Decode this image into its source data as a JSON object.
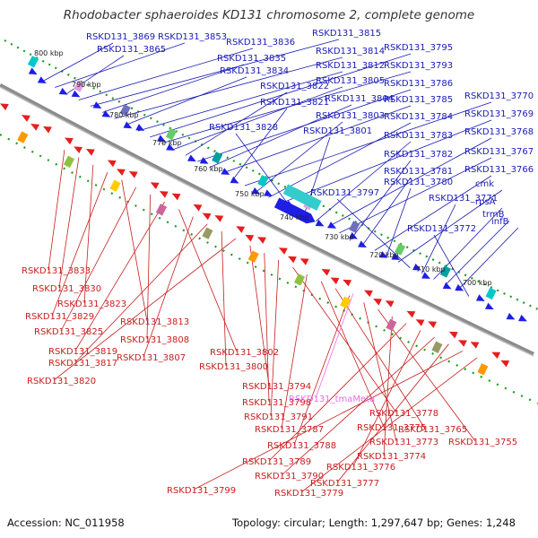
{
  "title": "Rhodobacter sphaeroides KD131 chromosome 2, complete genome",
  "footer": {
    "accession": "Accession: NC_011958",
    "summary": "Topology: circular; Length: 1,297,647 bp; Genes: 1,248"
  },
  "colors": {
    "forward_gene": "#1e1ee6",
    "reverse_gene": "#e61e1e",
    "backbone": "#8c8c8c",
    "tick": "#1e9b1e",
    "label_forward": "#1a1ab4",
    "label_reverse": "#c81e1e",
    "label_rna": "#e96ee9"
  },
  "scale_labels": [
    "800 kbp",
    "790 kbp",
    "780 kbp",
    "770 kbp",
    "760 kbp",
    "750 kbp",
    "740 kbp",
    "730 kbp",
    "720 kbp",
    "710 kbp",
    "700 kbp"
  ],
  "forward_labels": [
    "RSKD131_3869",
    "RSKD131_3853",
    "RSKD131_3865",
    "RSKD131_3836",
    "RSKD131_3815",
    "RSKD131_3835",
    "RSKD131_3814",
    "RSKD131_3834",
    "RSKD131_3812",
    "RSKD131_3795",
    "RSKD131_3793",
    "RSKD131_3805",
    "RSKD131_3822",
    "RSKD131_3786",
    "RSKD131_3804",
    "RSKD131_3785",
    "RSKD131_3821",
    "RSKD131_3770",
    "RSKD131_3803",
    "RSKD131_3784",
    "RSKD131_3769",
    "RSKD131_3828",
    "RSKD131_3801",
    "RSKD131_3783",
    "RSKD131_3768",
    "RSKD131_3767",
    "RSKD131_3782",
    "RSKD131_3781",
    "RSKD131_3766",
    "RSKD131_3780",
    "cmk",
    "RSKD131_3797",
    "RSKD131_3771",
    "rpsA",
    "trmB",
    "infB",
    "RSKD131_3772"
  ],
  "reverse_labels": [
    "RSKD131_3833",
    "RSKD131_3830",
    "RSKD131_3823",
    "RSKD131_3829",
    "RSKD131_3813",
    "RSKD131_3825",
    "RSKD131_3808",
    "RSKD131_3819",
    "RSKD131_3802",
    "RSKD131_3807",
    "RSKD131_3817",
    "RSKD131_3800",
    "RSKD131_3820",
    "RSKD131_3794",
    "RSKD131_3798",
    "RSKD131_3791",
    "RSKD131_3778",
    "RSKD131_3787",
    "RSKD131_3775",
    "RSKD131_3765",
    "RSKD131_3788",
    "RSKD131_3773",
    "RSKD131_3755",
    "RSKD131_3774",
    "RSKD131_3789",
    "RSKD131_3776",
    "RSKD131_3790",
    "RSKD131_3777",
    "RSKD131_3799",
    "RSKD131_3779"
  ],
  "rna_labels": [
    "RSKD131_tmaMeta"
  ]
}
